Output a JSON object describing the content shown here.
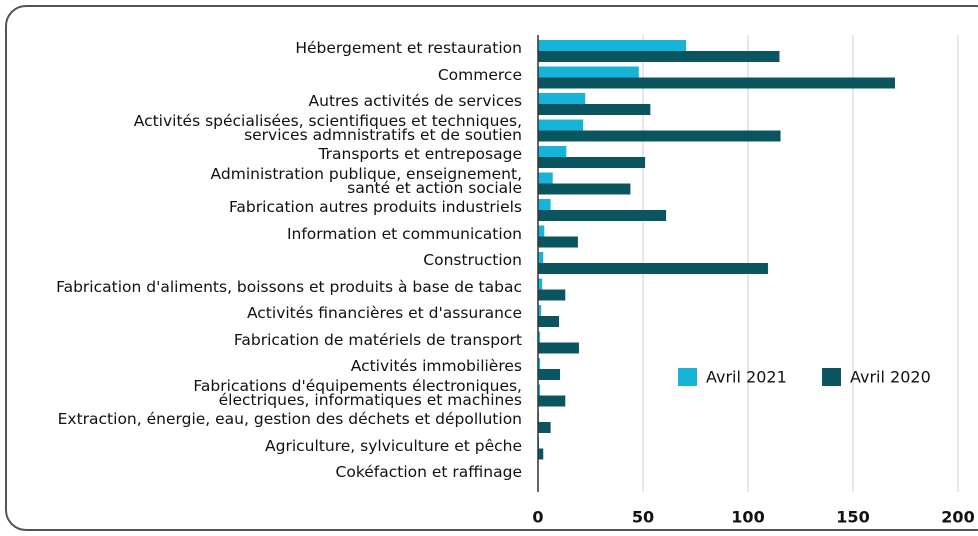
{
  "chart_data": {
    "type": "bar",
    "orientation": "horizontal",
    "categories": [
      "Hébergement et restauration",
      "Commerce",
      "Autres activités de services",
      "Activités spécialisées, scientifiques et techniques,\nservices admnistratifs et de soutien",
      "Transports et entreposage",
      "Administration publique, enseignement,\nsanté et action sociale",
      "Fabrication autres produits industriels",
      "Information et communication",
      "Construction",
      "Fabrication d'aliments, boissons et produits à base de tabac",
      "Activités financières et d'assurance",
      "Fabrication de matériels de transport",
      "Activités immobilières",
      "Fabrications d'équipements électroniques,\nélectriques, informatiques et machines",
      "Extraction, énergie, eau, gestion des déchets et dépollution",
      "Agriculture, sylviculture et pêche",
      "Cokéfaction et raffinage"
    ],
    "series": [
      {
        "name": "Avril 2021",
        "color": "#18b4d8",
        "values": [
          70.5,
          48,
          22.5,
          21.5,
          13.5,
          7,
          6,
          3,
          2.5,
          2,
          1.5,
          1,
          1,
          1,
          0.5,
          0.5,
          0
        ]
      },
      {
        "name": "Avril 2020",
        "color": "#0b5560",
        "values": [
          115,
          170,
          53.5,
          115.5,
          51,
          44,
          61,
          19,
          109.5,
          13,
          10,
          19.5,
          10.5,
          13,
          6,
          2.5,
          0
        ]
      }
    ],
    "xlim": [
      0,
      200
    ],
    "xticks": [
      0,
      50,
      100,
      150,
      200
    ],
    "grid": true,
    "legend": "right"
  }
}
